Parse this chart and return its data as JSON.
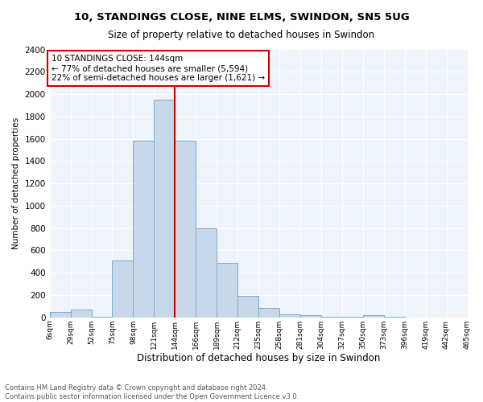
{
  "title": "10, STANDINGS CLOSE, NINE ELMS, SWINDON, SN5 5UG",
  "subtitle": "Size of property relative to detached houses in Swindon",
  "xlabel": "Distribution of detached houses by size in Swindon",
  "ylabel": "Number of detached properties",
  "footnote1": "Contains HM Land Registry data © Crown copyright and database right 2024.",
  "footnote2": "Contains public sector information licensed under the Open Government Licence v3.0.",
  "annotation_line1": "10 STANDINGS CLOSE: 144sqm",
  "annotation_line2": "← 77% of detached houses are smaller (5,594)",
  "annotation_line3": "22% of semi-detached houses are larger (1,621) →",
  "property_size_bin": 6,
  "highlight_color": "#cc0000",
  "bar_color": "#c8d8eb",
  "bar_edge_color": "#7aaac8",
  "bins": [
    6,
    29,
    52,
    75,
    98,
    121,
    144,
    167,
    190,
    213,
    236,
    259,
    282,
    305,
    328,
    351,
    374,
    397,
    420,
    443,
    466
  ],
  "bin_labels": [
    "6sqm",
    "29sqm",
    "52sqm",
    "75sqm",
    "98sqm",
    "121sqm",
    "144sqm",
    "166sqm",
    "189sqm",
    "212sqm",
    "235sqm",
    "258sqm",
    "281sqm",
    "304sqm",
    "327sqm",
    "350sqm",
    "373sqm",
    "396sqm",
    "419sqm",
    "442sqm",
    "465sqm"
  ],
  "counts": [
    50,
    70,
    5,
    510,
    1580,
    1950,
    1580,
    800,
    490,
    195,
    85,
    30,
    20,
    5,
    5,
    20,
    3,
    2,
    1,
    1
  ],
  "property_size": 144,
  "ylim": [
    0,
    2400
  ],
  "yticks": [
    0,
    200,
    400,
    600,
    800,
    1000,
    1200,
    1400,
    1600,
    1800,
    2000,
    2200,
    2400
  ],
  "background_color": "#eef4f9",
  "fig_bg": "white"
}
